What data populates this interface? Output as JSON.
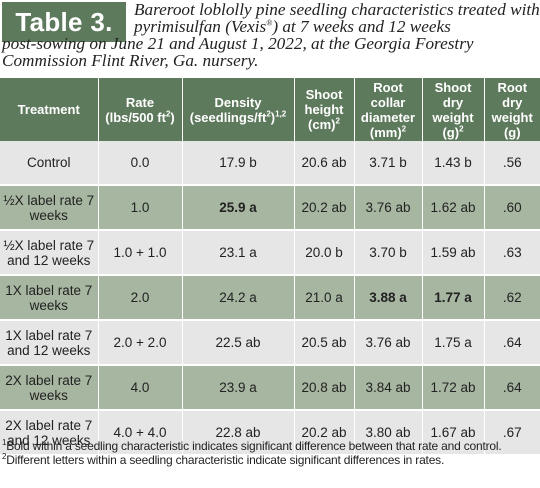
{
  "caption": {
    "label": "Table 3.",
    "line1": "Bareroot loblolly pine seedling characteristics treated with pyrimisulfan (Vexis",
    "reg_mark": "®",
    "line1_cont": ") at 7 weeks and 12 weeks",
    "line2": "post-sowing on June 21 and August 1, 2022, at the Georgia Forestry Commission Flint River, Ga. nursery."
  },
  "table": {
    "headers": [
      {
        "text": "Treatment",
        "sup": ""
      },
      {
        "text": "Rate (lbs/500 ft",
        "sup": "2",
        "after": ")"
      },
      {
        "text": "Density (seedlings/ft",
        "sup": "2",
        "after": ")",
        "sup2": "1,2"
      },
      {
        "text": "Shoot height (cm)",
        "sup": "2"
      },
      {
        "text": "Root collar diameter (mm)",
        "sup": "2"
      },
      {
        "text": "Shoot dry weight (g)",
        "sup": "2"
      },
      {
        "text": "Root dry weight (g)",
        "sup": ""
      }
    ],
    "rows": [
      {
        "treatment": "Control",
        "rate": "0.0",
        "density": "17.9 b",
        "density_bold": false,
        "shoot_height": "20.6 ab",
        "sh_bold": false,
        "rcd": "3.71 b",
        "rcd_bold": false,
        "sdw": "1.43 b",
        "sdw_bold": false,
        "rdw": ".56"
      },
      {
        "treatment": "½X label rate 7 weeks",
        "rate": "1.0",
        "density": "25.9 a",
        "density_bold": true,
        "shoot_height": "20.2 ab",
        "sh_bold": false,
        "rcd": "3.76 ab",
        "rcd_bold": false,
        "sdw": "1.62 ab",
        "sdw_bold": false,
        "rdw": ".60"
      },
      {
        "treatment": "½X label rate 7 and 12 weeks",
        "rate": "1.0 + 1.0",
        "density": "23.1 a",
        "density_bold": false,
        "shoot_height": "20.0 b",
        "sh_bold": false,
        "rcd": "3.70 b",
        "rcd_bold": false,
        "sdw": "1.59 ab",
        "sdw_bold": false,
        "rdw": ".63"
      },
      {
        "treatment": "1X label rate 7 weeks",
        "rate": "2.0",
        "density": "24.2 a",
        "density_bold": false,
        "shoot_height": "21.0 a",
        "sh_bold": false,
        "rcd": "3.88 a",
        "rcd_bold": true,
        "sdw": "1.77 a",
        "sdw_bold": true,
        "rdw": ".62"
      },
      {
        "treatment": "1X label rate 7 and 12 weeks",
        "rate": "2.0 + 2.0",
        "density": "22.5 ab",
        "density_bold": false,
        "shoot_height": "20.5 ab",
        "sh_bold": false,
        "rcd": "3.76 ab",
        "rcd_bold": false,
        "sdw": "1.75 a",
        "sdw_bold": false,
        "rdw": ".64"
      },
      {
        "treatment": "2X label rate 7 weeks",
        "rate": "4.0",
        "density": "23.9 a",
        "density_bold": false,
        "shoot_height": "20.8 ab",
        "sh_bold": false,
        "rcd": "3.84 ab",
        "rcd_bold": false,
        "sdw": "1.72 ab",
        "sdw_bold": false,
        "rdw": ".64"
      },
      {
        "treatment": "2X label rate 7 and 12 weeks",
        "rate": "4.0 + 4.0",
        "density": "22.8 ab",
        "density_bold": false,
        "shoot_height": "20.2 ab",
        "sh_bold": false,
        "rcd": "3.80 ab",
        "rcd_bold": false,
        "sdw": "1.67 ab",
        "sdw_bold": false,
        "rdw": ".67"
      }
    ]
  },
  "footnotes": [
    {
      "marker": "1",
      "text": "Bold within a seedling characteristic indicates significant difference between that rate and control."
    },
    {
      "marker": "2",
      "text": "Different letters within a seedling characteristic indicate significant differences in rates."
    }
  ],
  "colors": {
    "header_green": "#5e7a5c",
    "row_dark": "#a7b6a1",
    "row_light": "#e6e6e6"
  }
}
